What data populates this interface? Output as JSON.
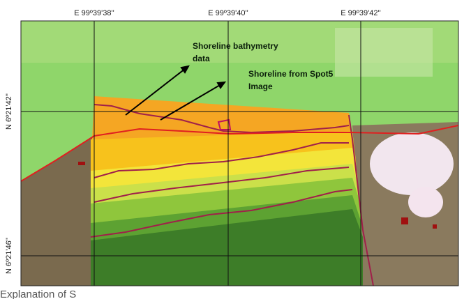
{
  "map": {
    "longitudes": [
      "E 99º39'38''",
      "E 99º39'40''",
      "E 99º39'42''"
    ],
    "latitudes": [
      "N 6º21'42''",
      "N 6º21'46''"
    ],
    "annotations": [
      {
        "lines": [
          "Shoreline bathymetry",
          "data"
        ]
      },
      {
        "lines": [
          "Shoreline from Spot5",
          "Image"
        ]
      }
    ],
    "caption": "Explanation of S"
  }
}
